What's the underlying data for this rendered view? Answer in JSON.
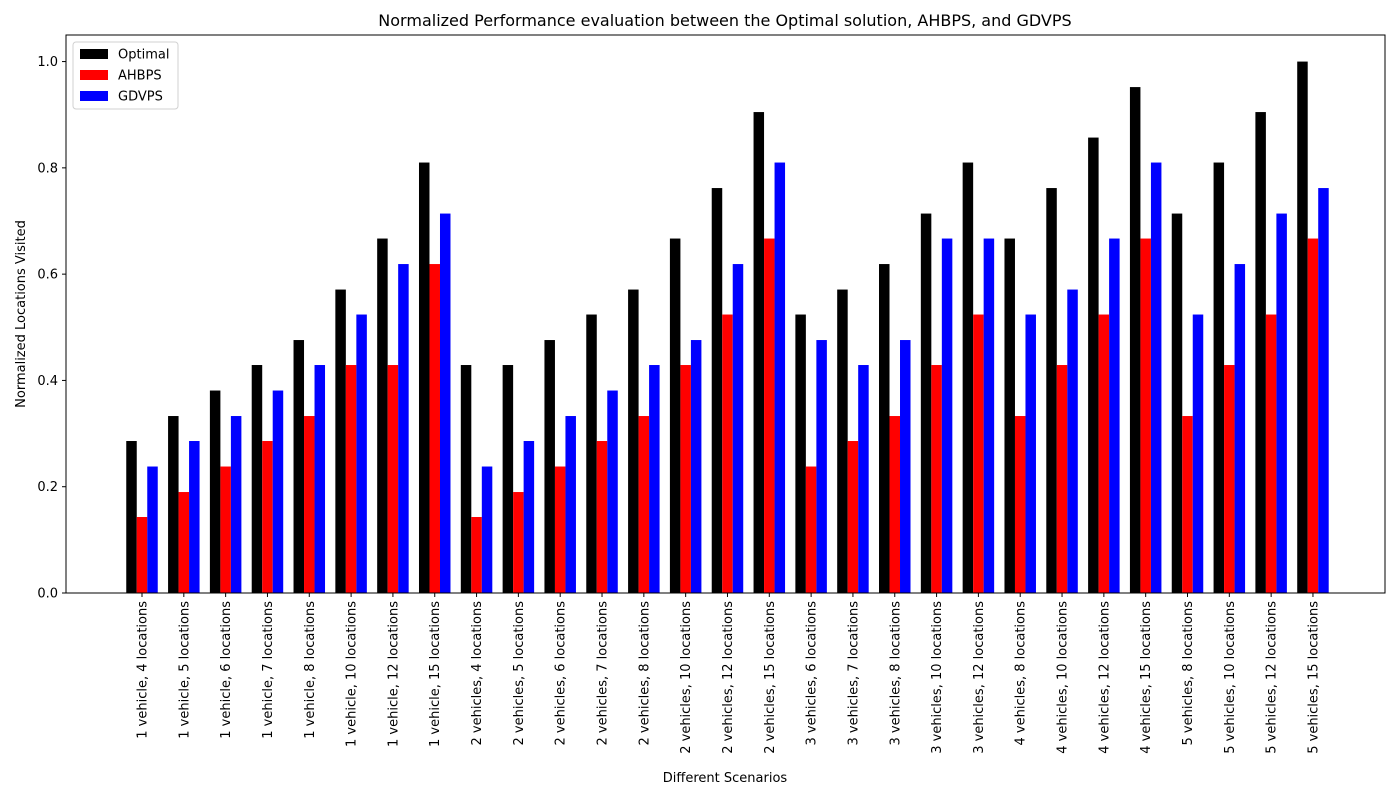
{
  "chart_data": {
    "type": "bar",
    "title": "Normalized Performance evaluation between the Optimal solution, AHBPS, and GDVPS",
    "xlabel": "Different Scenarios",
    "ylabel": "Normalized Locations Visited",
    "ylim": [
      0,
      1.05
    ],
    "yticks": [
      0.0,
      0.2,
      0.4,
      0.6,
      0.8,
      1.0
    ],
    "ytick_labels": [
      "0.0",
      "0.2",
      "0.4",
      "0.6",
      "0.8",
      "1.0"
    ],
    "grid": false,
    "legend_position": "top-left",
    "categories": [
      "1 vehicle, 4 locations",
      "1 vehicle, 5 locations",
      "1 vehicle, 6 locations",
      "1 vehicle, 7 locations",
      "1 vehicle, 8 locations",
      "1 vehicle, 10 locations",
      "1 vehicle, 12 locations",
      "1 vehicle, 15 locations",
      "2 vehicles, 4 locations",
      "2 vehicles, 5 locations",
      "2 vehicles, 6 locations",
      "2 vehicles, 7 locations",
      "2 vehicles, 8 locations",
      "2 vehicles, 10 locations",
      "2 vehicles, 12 locations",
      "2 vehicles, 15 locations",
      "3 vehicles, 6 locations",
      "3 vehicles, 7 locations",
      "3 vehicles, 8 locations",
      "3 vehicles, 10 locations",
      "3 vehicles, 12 locations",
      "4 vehicles, 8 locations",
      "4 vehicles, 10 locations",
      "4 vehicles, 12 locations",
      "4 vehicles, 15 locations",
      "5 vehicles, 8 locations",
      "5 vehicles, 10 locations",
      "5 vehicles, 12 locations",
      "5 vehicles, 15 locations"
    ],
    "series": [
      {
        "name": "Optimal",
        "color": "#000000",
        "values": [
          0.286,
          0.333,
          0.381,
          0.429,
          0.476,
          0.571,
          0.667,
          0.81,
          0.429,
          0.429,
          0.476,
          0.524,
          0.571,
          0.667,
          0.762,
          0.905,
          0.524,
          0.571,
          0.619,
          0.714,
          0.81,
          0.667,
          0.762,
          0.857,
          0.952,
          0.714,
          0.81,
          0.905,
          1.0
        ]
      },
      {
        "name": "AHBPS",
        "color": "#ff0000",
        "values": [
          0.143,
          0.19,
          0.238,
          0.286,
          0.333,
          0.429,
          0.429,
          0.619,
          0.143,
          0.19,
          0.238,
          0.286,
          0.333,
          0.429,
          0.524,
          0.667,
          0.238,
          0.286,
          0.333,
          0.429,
          0.524,
          0.333,
          0.429,
          0.524,
          0.667,
          0.333,
          0.429,
          0.524,
          0.667
        ]
      },
      {
        "name": "GDVPS",
        "color": "#0000ff",
        "values": [
          0.238,
          0.286,
          0.333,
          0.381,
          0.429,
          0.524,
          0.619,
          0.714,
          0.238,
          0.286,
          0.333,
          0.381,
          0.429,
          0.476,
          0.619,
          0.81,
          0.476,
          0.429,
          0.476,
          0.667,
          0.667,
          0.524,
          0.571,
          0.667,
          0.81,
          0.524,
          0.619,
          0.714,
          0.762
        ]
      }
    ]
  }
}
